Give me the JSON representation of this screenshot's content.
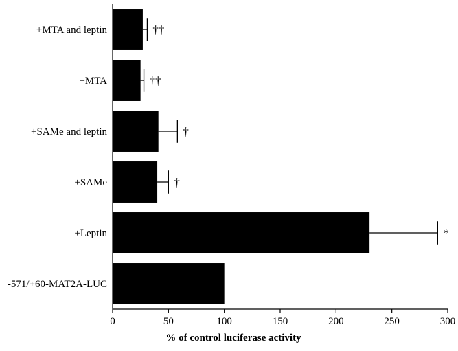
{
  "chart_data": {
    "type": "bar",
    "orientation": "horizontal",
    "title": "",
    "xlabel": "% of control luciferase activity",
    "ylabel": "",
    "xlim": [
      0,
      300
    ],
    "xticks": [
      "0",
      "50",
      "100",
      "150",
      "200",
      "250",
      "300"
    ],
    "grid": false,
    "legend": "none",
    "bar_color": "#000000",
    "categories": [
      "+MTA and leptin",
      "+MTA",
      "+SAMe and leptin",
      "+SAMe",
      "+Leptin",
      "-571/+60-MAT2A-LUC"
    ],
    "values": [
      27,
      25,
      41,
      40,
      230,
      100
    ],
    "errors": [
      4,
      3,
      17,
      10,
      61,
      0
    ],
    "annotations": [
      "††",
      "††",
      "†",
      "†",
      "*",
      ""
    ]
  }
}
